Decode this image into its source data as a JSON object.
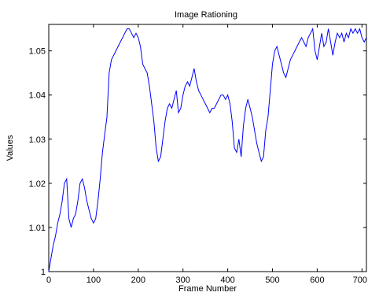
{
  "chart_data": {
    "type": "line",
    "title": "Image Rationing",
    "xlabel": "Frame Number",
    "ylabel": "Values",
    "xlim": [
      0,
      710
    ],
    "ylim": [
      1.0,
      1.056
    ],
    "xticks": [
      0,
      100,
      200,
      300,
      400,
      500,
      600,
      700
    ],
    "yticks": [
      1,
      1.01,
      1.02,
      1.03,
      1.04,
      1.05
    ],
    "ytick_labels": [
      "1",
      "1.01",
      "1.02",
      "1.03",
      "1.04",
      "1.05"
    ],
    "grid": false,
    "line_color": "#0000ff",
    "series": [
      {
        "x": [
          0,
          5,
          10,
          15,
          20,
          25,
          30,
          35,
          40,
          45,
          50,
          55,
          60,
          65,
          70,
          75,
          80,
          85,
          90,
          95,
          100,
          105,
          110,
          115,
          120,
          125,
          130,
          135,
          140,
          145,
          150,
          155,
          160,
          165,
          170,
          175,
          180,
          185,
          190,
          195,
          200,
          205,
          210,
          215,
          220,
          225,
          230,
          235,
          240,
          245,
          250,
          255,
          260,
          265,
          270,
          275,
          280,
          285,
          290,
          295,
          300,
          305,
          310,
          315,
          320,
          325,
          330,
          335,
          340,
          345,
          350,
          355,
          360,
          365,
          370,
          375,
          380,
          385,
          390,
          395,
          400,
          405,
          410,
          415,
          420,
          425,
          430,
          435,
          440,
          445,
          450,
          455,
          460,
          465,
          470,
          475,
          480,
          485,
          490,
          495,
          500,
          505,
          510,
          515,
          520,
          525,
          530,
          535,
          540,
          545,
          550,
          555,
          560,
          565,
          570,
          575,
          580,
          585,
          590,
          595,
          600,
          605,
          610,
          615,
          620,
          625,
          630,
          635,
          640,
          645,
          650,
          655,
          660,
          665,
          670,
          675,
          680,
          685,
          690,
          695,
          700,
          705,
          710
        ],
        "values": [
          1.0,
          1.003,
          1.006,
          1.008,
          1.011,
          1.013,
          1.016,
          1.02,
          1.021,
          1.012,
          1.01,
          1.012,
          1.013,
          1.016,
          1.02,
          1.021,
          1.019,
          1.016,
          1.014,
          1.012,
          1.011,
          1.012,
          1.016,
          1.021,
          1.027,
          1.031,
          1.035,
          1.045,
          1.048,
          1.049,
          1.05,
          1.051,
          1.052,
          1.053,
          1.054,
          1.055,
          1.055,
          1.054,
          1.053,
          1.054,
          1.053,
          1.051,
          1.047,
          1.046,
          1.045,
          1.042,
          1.038,
          1.034,
          1.028,
          1.025,
          1.026,
          1.03,
          1.034,
          1.037,
          1.038,
          1.037,
          1.039,
          1.041,
          1.036,
          1.037,
          1.04,
          1.042,
          1.043,
          1.042,
          1.044,
          1.046,
          1.043,
          1.041,
          1.04,
          1.039,
          1.038,
          1.037,
          1.036,
          1.037,
          1.037,
          1.038,
          1.039,
          1.04,
          1.04,
          1.039,
          1.04,
          1.038,
          1.034,
          1.028,
          1.027,
          1.03,
          1.026,
          1.033,
          1.037,
          1.039,
          1.037,
          1.035,
          1.032,
          1.029,
          1.027,
          1.025,
          1.026,
          1.032,
          1.035,
          1.041,
          1.047,
          1.05,
          1.051,
          1.049,
          1.047,
          1.045,
          1.044,
          1.046,
          1.048,
          1.049,
          1.05,
          1.051,
          1.052,
          1.053,
          1.052,
          1.051,
          1.053,
          1.054,
          1.055,
          1.05,
          1.048,
          1.051,
          1.054,
          1.051,
          1.052,
          1.055,
          1.052,
          1.049,
          1.052,
          1.054,
          1.053,
          1.054,
          1.052,
          1.054,
          1.053,
          1.055,
          1.054,
          1.055,
          1.054,
          1.055,
          1.053,
          1.052,
          1.053
        ]
      }
    ]
  }
}
